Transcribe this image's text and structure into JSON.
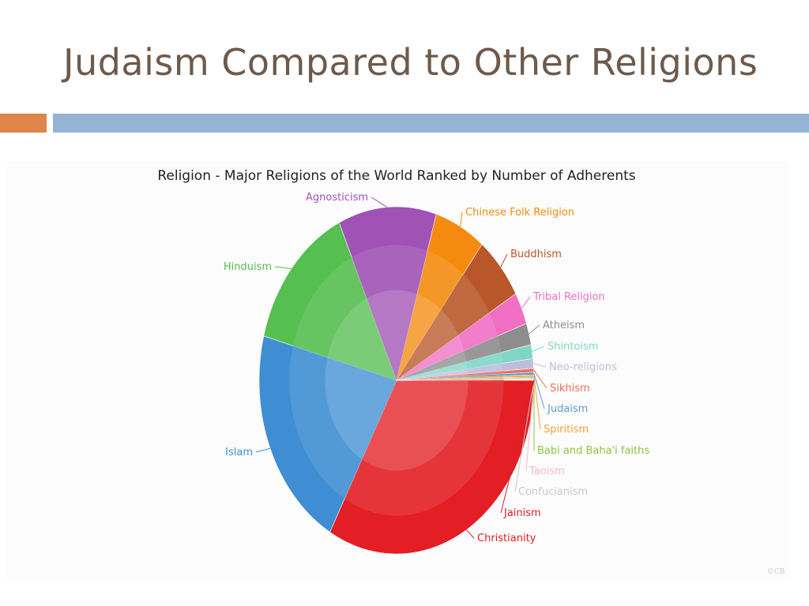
{
  "slide": {
    "title": "Judaism Compared to Other Religions"
  },
  "colors": {
    "title_text": "#6d5a4c",
    "accent_orange": "#e0854a",
    "accent_blue": "#93b4d4"
  },
  "chart_data": {
    "type": "pie",
    "title": "Religion - Major Religions of the World Ranked by Number of Adherents",
    "start_angle_deg": 0,
    "direction": "clockwise",
    "slices": [
      {
        "label": "Christianity",
        "value": 33.0,
        "color": "#e31e24"
      },
      {
        "label": "Islam",
        "value": 21.0,
        "color": "#3f8ed4"
      },
      {
        "label": "Hinduism",
        "value": 14.0,
        "color": "#55bf4f"
      },
      {
        "label": "Agnosticism",
        "value": 11.5,
        "color": "#a052b5"
      },
      {
        "label": "Chinese Folk Religion",
        "value": 6.0,
        "color": "#f48b0f"
      },
      {
        "label": "Buddhism",
        "value": 6.0,
        "color": "#b9572a"
      },
      {
        "label": "Tribal Religion",
        "value": 3.0,
        "color": "#f06fc4"
      },
      {
        "label": "Atheism",
        "value": 2.0,
        "color": "#8d8d8d"
      },
      {
        "label": "Shintoism",
        "value": 1.3,
        "color": "#7fd6c6"
      },
      {
        "label": "Neo-religions",
        "value": 0.9,
        "color": "#bdbddc"
      },
      {
        "label": "Sikhism",
        "value": 0.35,
        "color": "#f26d5b"
      },
      {
        "label": "Judaism",
        "value": 0.25,
        "color": "#5b9bd5"
      },
      {
        "label": "Spiritism",
        "value": 0.2,
        "color": "#f7a23a"
      },
      {
        "label": "Babi and Baha'i faiths",
        "value": 0.12,
        "color": "#8cc63f"
      },
      {
        "label": "Taoism",
        "value": 0.06,
        "color": "#f7b6c8"
      },
      {
        "label": "Confucianism",
        "value": 0.06,
        "color": "#c9c9c9"
      },
      {
        "label": "Jainism",
        "value": 0.06,
        "color": "#d8202a"
      }
    ],
    "watermark": "©CB"
  }
}
